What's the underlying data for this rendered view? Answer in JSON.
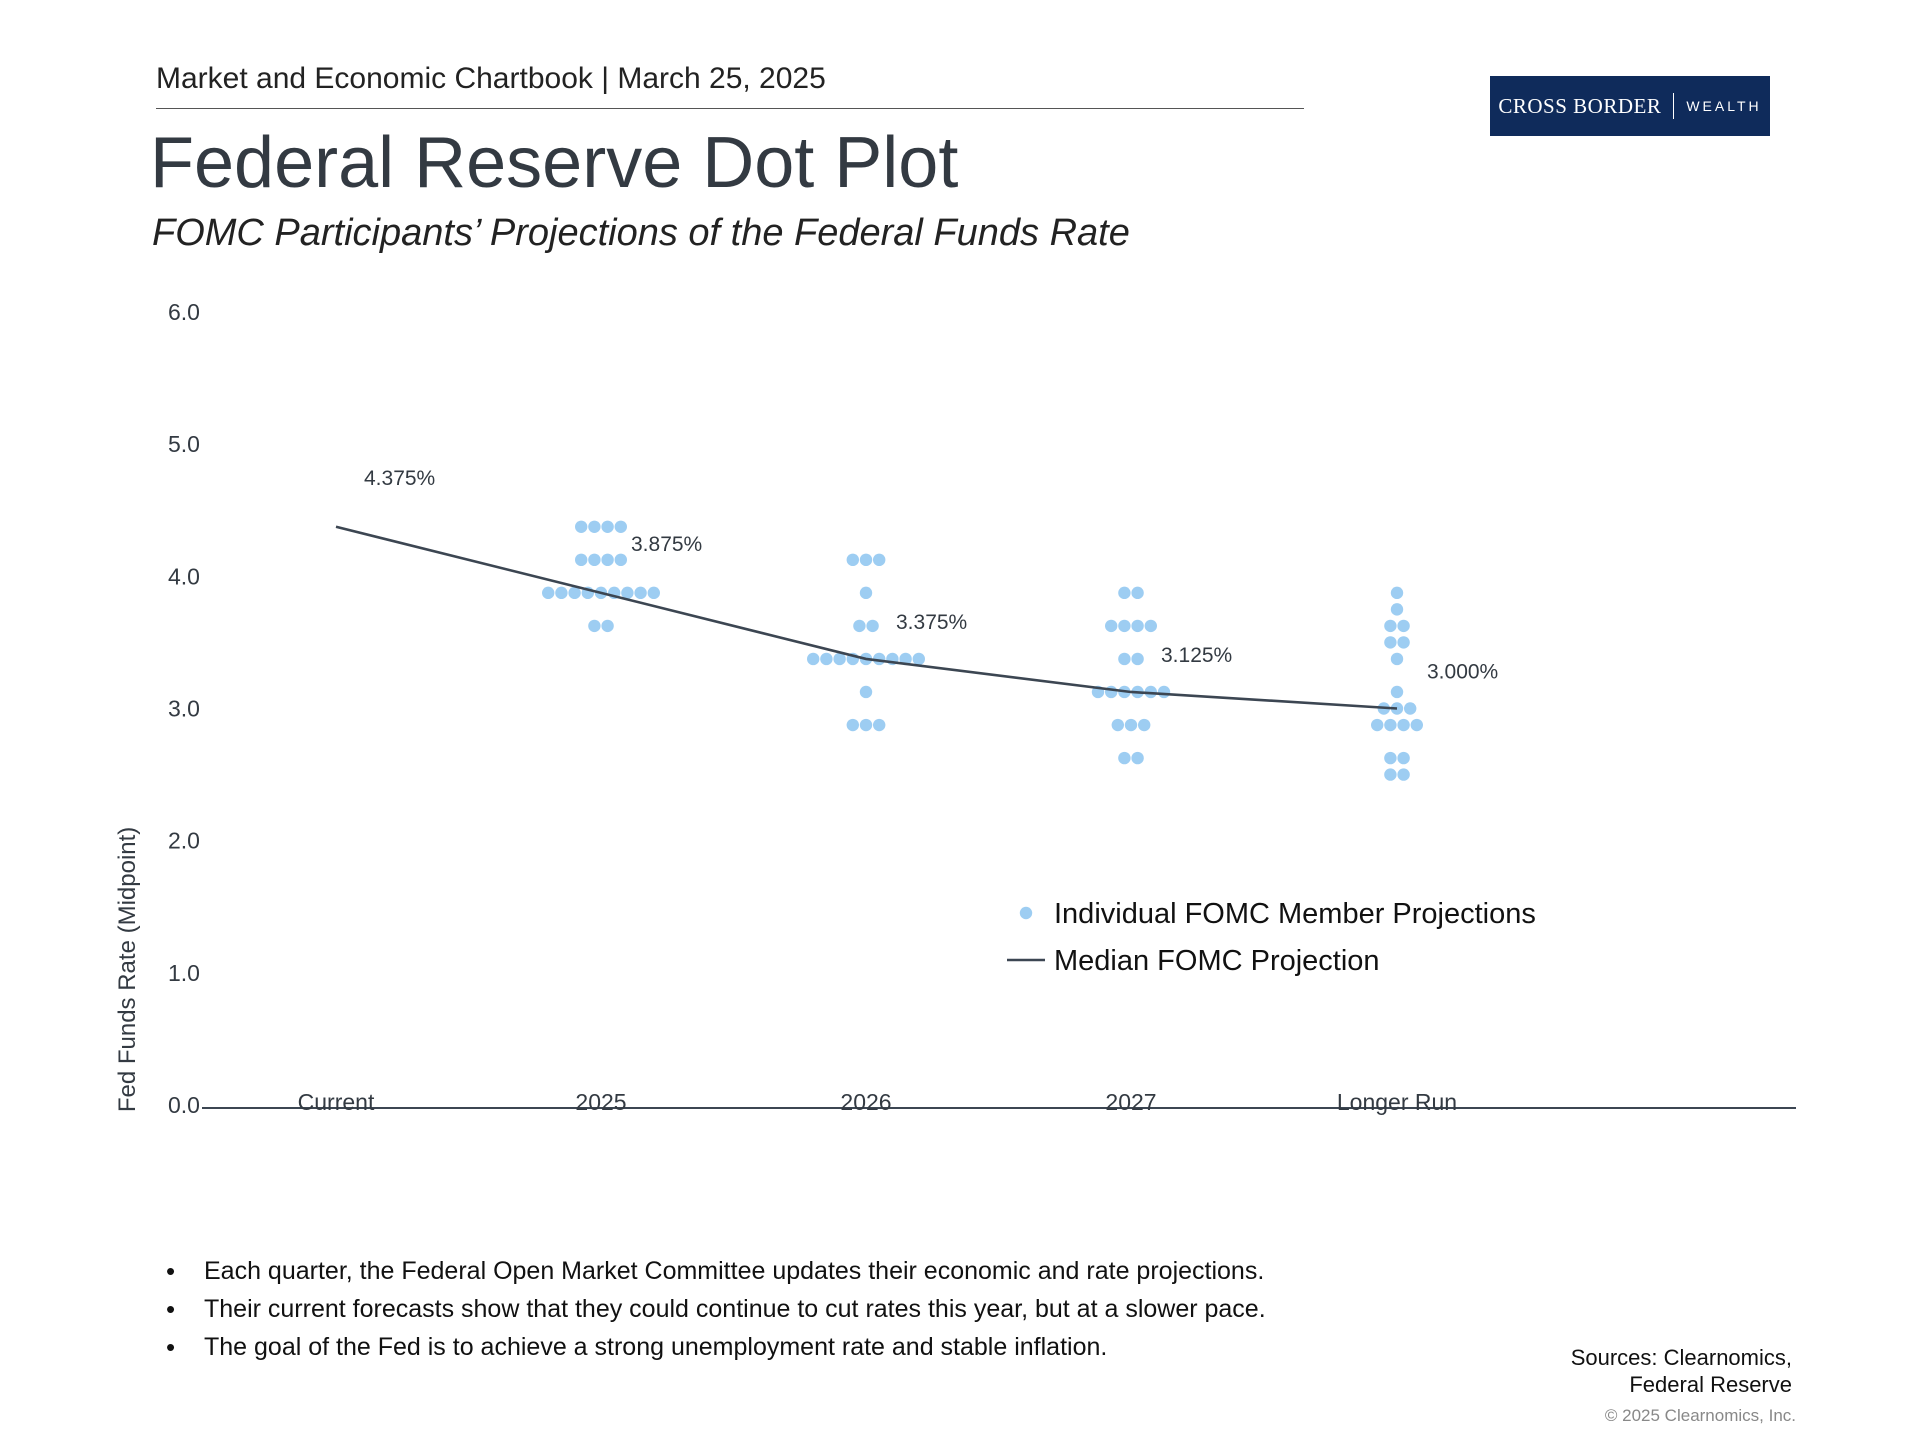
{
  "header": {
    "chartbook": "Market and Economic Chartbook | March 25, 2025",
    "logo_primary": "CROSS BORDER",
    "logo_secondary": "WEALTH"
  },
  "title": "Federal Reserve Dot Plot",
  "subtitle": "FOMC Participants’ Projections of the Federal Funds Rate",
  "chart_data": {
    "type": "scatter",
    "title": "Federal Reserve Dot Plot",
    "ylabel": "Fed Funds Rate (Midpoint)",
    "xlabel": "",
    "ylim": [
      0,
      6
    ],
    "yticks": [
      "0.0",
      "1.0",
      "2.0",
      "3.0",
      "4.0",
      "5.0",
      "6.0"
    ],
    "categories": [
      "Current",
      "2025",
      "2026",
      "2027",
      "Longer Run"
    ],
    "median": {
      "name": "Median FOMC Projection",
      "values": [
        4.375,
        3.875,
        3.375,
        3.125,
        3.0
      ],
      "labels": [
        "4.375%",
        "3.875%",
        "3.375%",
        "3.125%",
        "3.000%"
      ]
    },
    "dots": {
      "name": "Individual FOMC Member Projections",
      "groups": [
        {
          "category": "Current",
          "rates": []
        },
        {
          "category": "2025",
          "rates": [
            {
              "rate": 4.375,
              "count": 4
            },
            {
              "rate": 4.125,
              "count": 4
            },
            {
              "rate": 3.875,
              "count": 9
            },
            {
              "rate": 3.625,
              "count": 2
            }
          ]
        },
        {
          "category": "2026",
          "rates": [
            {
              "rate": 4.125,
              "count": 3
            },
            {
              "rate": 3.875,
              "count": 1
            },
            {
              "rate": 3.625,
              "count": 2
            },
            {
              "rate": 3.375,
              "count": 9
            },
            {
              "rate": 3.125,
              "count": 1
            },
            {
              "rate": 2.875,
              "count": 3
            }
          ]
        },
        {
          "category": "2027",
          "rates": [
            {
              "rate": 3.875,
              "count": 2
            },
            {
              "rate": 3.625,
              "count": 4
            },
            {
              "rate": 3.375,
              "count": 2
            },
            {
              "rate": 3.125,
              "count": 6
            },
            {
              "rate": 2.875,
              "count": 3
            },
            {
              "rate": 2.625,
              "count": 2
            }
          ]
        },
        {
          "category": "Longer Run",
          "rates": [
            {
              "rate": 3.875,
              "count": 1
            },
            {
              "rate": 3.75,
              "count": 1
            },
            {
              "rate": 3.625,
              "count": 2
            },
            {
              "rate": 3.5,
              "count": 2
            },
            {
              "rate": 3.375,
              "count": 1
            },
            {
              "rate": 3.125,
              "count": 1
            },
            {
              "rate": 3.0,
              "count": 3
            },
            {
              "rate": 2.875,
              "count": 4
            },
            {
              "rate": 2.625,
              "count": 2
            },
            {
              "rate": 2.5,
              "count": 2
            }
          ]
        }
      ]
    },
    "legend": {
      "position": "bottom-right",
      "dot_label": "Individual FOMC Member Projections",
      "line_label": "Median FOMC Projection"
    },
    "colors": {
      "dot": "#9dcdf2",
      "line": "#3c4652",
      "axis": "#3c4652"
    }
  },
  "bullets": [
    "Each quarter, the Federal Open Market Committee updates their economic and rate projections.",
    "Their current forecasts show that they could continue to cut rates this year, but at a slower pace.",
    "The goal of the Fed is to achieve a strong unemployment rate and stable inflation."
  ],
  "sources": {
    "line1": "Sources: Clearnomics,",
    "line2": "Federal Reserve"
  },
  "copyright": "© 2025 Clearnomics, Inc."
}
